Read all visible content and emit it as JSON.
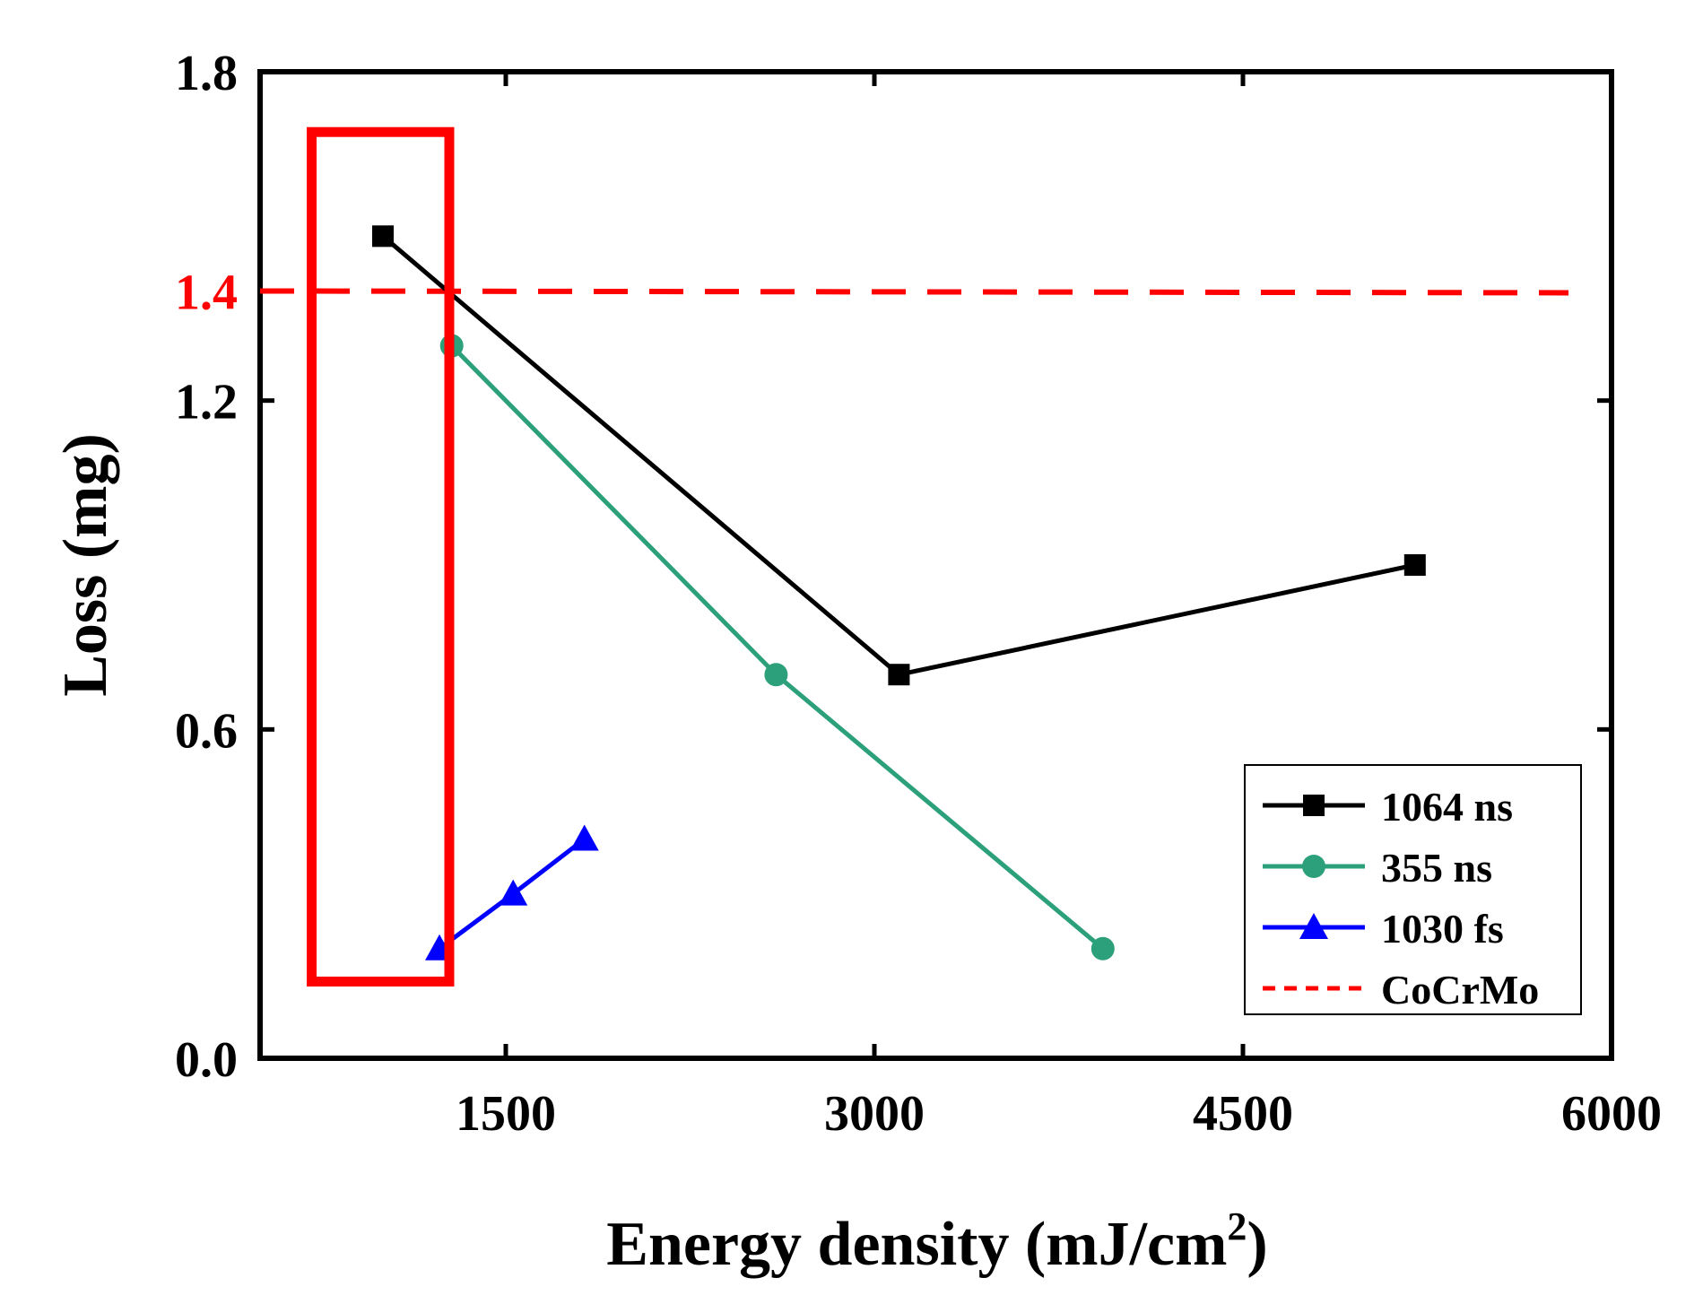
{
  "chart_data": {
    "type": "line",
    "xlabel_main": "Energy density (mJ/cm",
    "xlabel_sup": "2",
    "xlabel_tail": ")",
    "ylabel": "Loss (mg)",
    "xlim": [
      500,
      6000
    ],
    "ylim": [
      0.0,
      1.8
    ],
    "xticks": [
      1500,
      3000,
      4500,
      6000
    ],
    "yticks": [
      0.0,
      0.6,
      1.2,
      1.8
    ],
    "ytick_labels": [
      "0.0",
      "0.6",
      "1.2",
      "1.8"
    ],
    "highlight_tick": {
      "value": 1.4,
      "label": "1.4",
      "color": "#ff0000"
    },
    "series": [
      {
        "name": "1064 ns",
        "marker": "square",
        "color": "#000000",
        "x": [
          1000,
          3100,
          5200
        ],
        "y": [
          1.5,
          0.7,
          0.9
        ]
      },
      {
        "name": "355 ns",
        "marker": "circle",
        "color": "#2ca07a",
        "x": [
          1280,
          2600,
          3930
        ],
        "y": [
          1.3,
          0.7,
          0.2
        ]
      },
      {
        "name": "1030 fs",
        "marker": "triangle",
        "color": "#0000ff",
        "x": [
          1230,
          1530,
          1820
        ],
        "y": [
          0.2,
          0.3,
          0.4
        ]
      }
    ],
    "reference_line": {
      "name": "CoCrMo",
      "value": 1.4,
      "color": "#ff0000",
      "style": "dashed"
    },
    "highlight_box": {
      "color": "#ff0000",
      "x_range": [
        710,
        1270
      ],
      "y_range": [
        0.14,
        1.69
      ]
    },
    "legend": {
      "position": "bottom-right"
    }
  }
}
